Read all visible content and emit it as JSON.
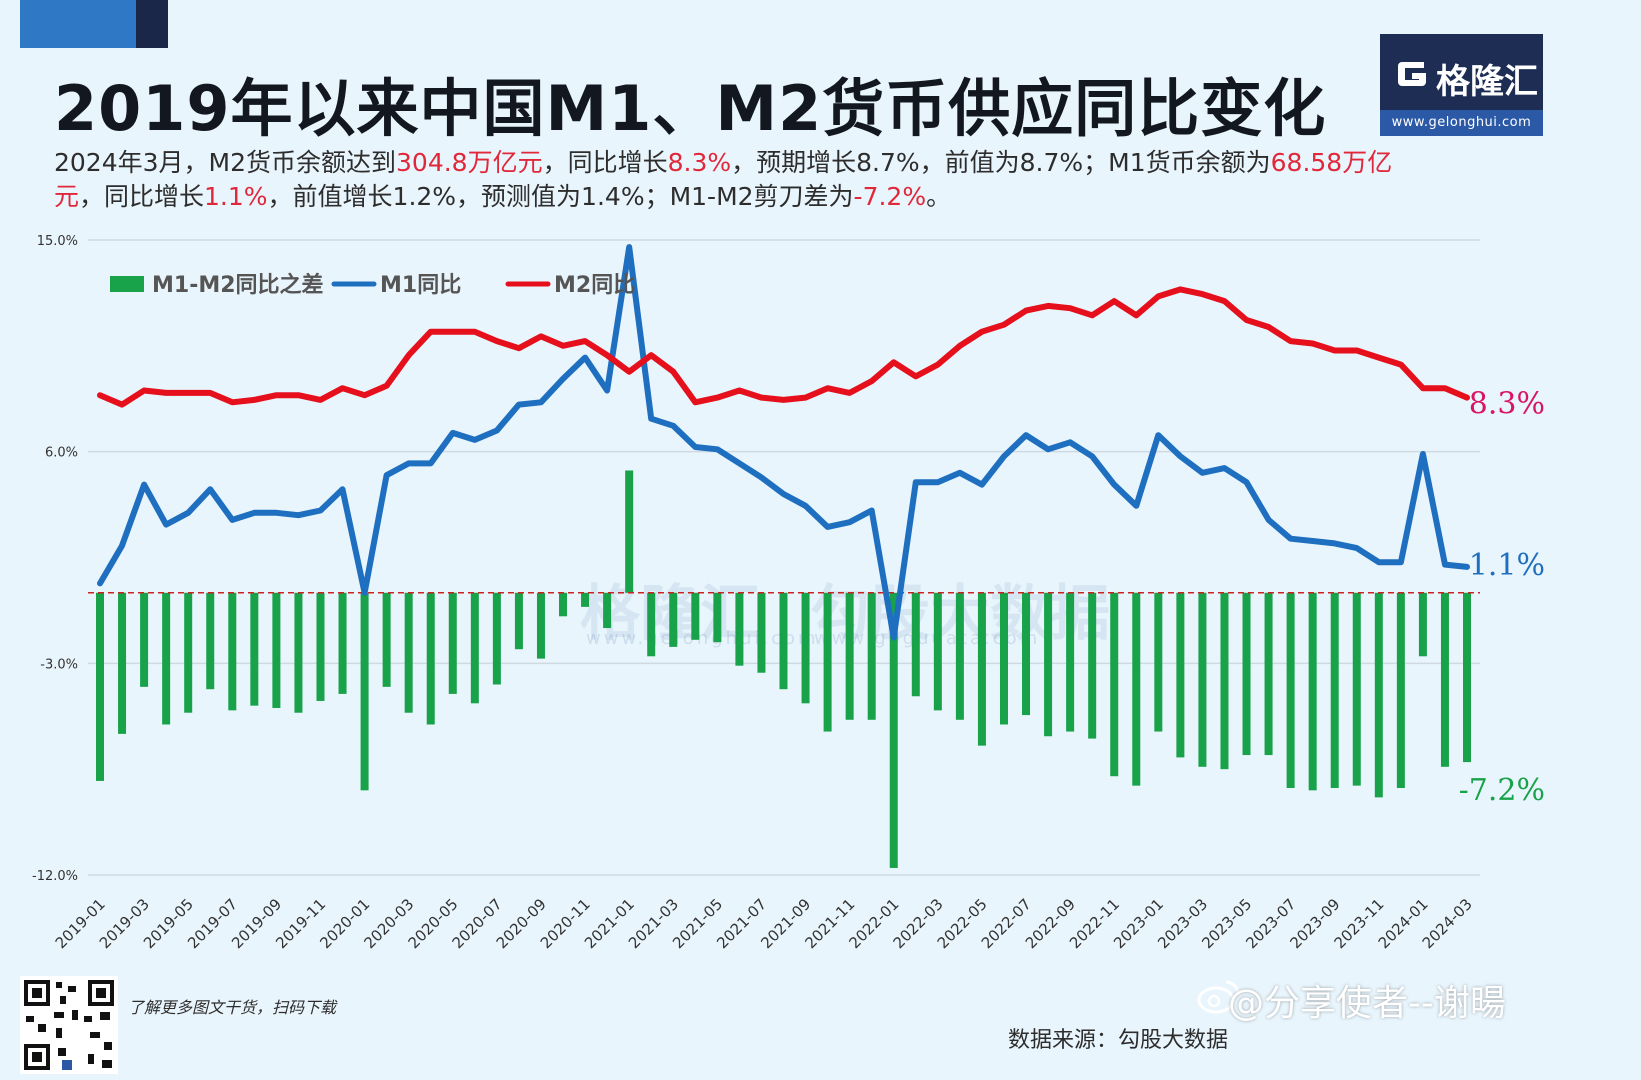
{
  "colors": {
    "m1": "#1f6fc0",
    "m2": "#e5101c",
    "spread": "#18a24a",
    "label_m1": "#1f6fc0",
    "label_m2": "#d91465",
    "label_spread": "#18a24a",
    "highlight_red": "#e0283a",
    "zero_line": "#cc2222",
    "grid": "#cfd9e2"
  },
  "header": {
    "title": "2019年以来中国M1、M2货币供应同比变化",
    "subtitle_parts": [
      {
        "text": "2024年3月，M2货币余额达到",
        "hl": false
      },
      {
        "text": "304.8万亿元",
        "hl": true
      },
      {
        "text": "，同比增长",
        "hl": false
      },
      {
        "text": "8.3%",
        "hl": true
      },
      {
        "text": "，预期增长8.7%，前值为8.7%；M1货币余额为",
        "hl": false
      },
      {
        "text": "68.58万亿元",
        "hl": true
      },
      {
        "text": "，同比增长",
        "hl": false
      },
      {
        "text": "1.1%",
        "hl": true
      },
      {
        "text": "，前值增长1.2%，预测值为1.4%；M1-M2剪刀差为",
        "hl": false
      },
      {
        "text": "-7.2%",
        "hl": true
      },
      {
        "text": "。",
        "hl": false
      }
    ]
  },
  "brand": {
    "logo_text": "格隆汇",
    "logo_url": "www.gelonghui.com",
    "watermark_1": "格隆汇",
    "watermark_1_sub": "www.gelonghui.com",
    "watermark_2": "勾股大数据",
    "watermark_2_sub": "www.gogudata.com"
  },
  "footer": {
    "note": "了解更多图文干货，扫码下载",
    "weibo_handle": "@分享使者--谢暘",
    "source": "数据来源：勾股大数据"
  },
  "chart_data": {
    "type": "bar",
    "title": "",
    "xlabel": "",
    "ylabel": "",
    "ylim": [
      -12,
      15
    ],
    "yticks": [
      15,
      6,
      -3,
      -12
    ],
    "ytick_labels": [
      "15.0%",
      "6.0%",
      "-3.0%",
      "-12.0%"
    ],
    "grid": true,
    "legend_position": "top-left",
    "zero_line": "dashed",
    "x_tick_labels": [
      "2019-01",
      "2019-03",
      "2019-05",
      "2019-07",
      "2019-09",
      "2019-11",
      "2020-01",
      "2020-03",
      "2020-05",
      "2020-07",
      "2020-09",
      "2020-11",
      "2021-01",
      "2021-03",
      "2021-05",
      "2021-07",
      "2021-09",
      "2021-11",
      "2022-01",
      "2022-03",
      "2022-05",
      "2022-07",
      "2022-09",
      "2022-11",
      "2023-01",
      "2023-03",
      "2023-05",
      "2023-07",
      "2023-09",
      "2023-11",
      "2024-01",
      "2024-03"
    ],
    "x": [
      "2019-01",
      "2019-02",
      "2019-03",
      "2019-04",
      "2019-05",
      "2019-06",
      "2019-07",
      "2019-08",
      "2019-09",
      "2019-10",
      "2019-11",
      "2019-12",
      "2020-01",
      "2020-02",
      "2020-03",
      "2020-04",
      "2020-05",
      "2020-06",
      "2020-07",
      "2020-08",
      "2020-09",
      "2020-10",
      "2020-11",
      "2020-12",
      "2021-01",
      "2021-02",
      "2021-03",
      "2021-04",
      "2021-05",
      "2021-06",
      "2021-07",
      "2021-08",
      "2021-09",
      "2021-10",
      "2021-11",
      "2021-12",
      "2022-01",
      "2022-02",
      "2022-03",
      "2022-04",
      "2022-05",
      "2022-06",
      "2022-07",
      "2022-08",
      "2022-09",
      "2022-10",
      "2022-11",
      "2022-12",
      "2023-01",
      "2023-02",
      "2023-03",
      "2023-04",
      "2023-05",
      "2023-06",
      "2023-07",
      "2023-08",
      "2023-09",
      "2023-10",
      "2023-11",
      "2023-12",
      "2024-01",
      "2024-02",
      "2024-03"
    ],
    "series": [
      {
        "name": "M1-M2同比之差",
        "type": "bar",
        "values": [
          -8.0,
          -6.0,
          -4.0,
          -5.6,
          -5.1,
          -4.1,
          -5.0,
          -4.8,
          -4.9,
          -5.1,
          -4.6,
          -4.3,
          -8.4,
          -4.0,
          -5.1,
          -5.6,
          -4.3,
          -4.7,
          -3.9,
          -2.4,
          -2.8,
          -1.0,
          -0.6,
          -1.5,
          5.2,
          -2.7,
          -2.3,
          -2.0,
          -2.1,
          -3.1,
          -3.4,
          -4.1,
          -4.7,
          -5.9,
          -5.4,
          -5.4,
          -11.7,
          -4.4,
          -5.0,
          -5.4,
          -6.5,
          -5.6,
          -5.2,
          -6.1,
          -5.9,
          -6.2,
          -7.8,
          -8.2,
          -5.9,
          -7.0,
          -7.4,
          -7.5,
          -6.9,
          -6.9,
          -8.3,
          -8.4,
          -8.3,
          -8.2,
          -8.7,
          -8.3,
          -2.7,
          -7.4,
          -7.2
        ]
      },
      {
        "name": "M1同比",
        "type": "line",
        "values": [
          0.4,
          2.0,
          4.6,
          2.9,
          3.4,
          4.4,
          3.1,
          3.4,
          3.4,
          3.3,
          3.5,
          4.4,
          0.0,
          5.0,
          5.5,
          5.5,
          6.8,
          6.5,
          6.9,
          8.0,
          8.1,
          9.1,
          10.0,
          8.6,
          14.7,
          7.4,
          7.1,
          6.2,
          6.1,
          5.5,
          4.9,
          4.2,
          3.7,
          2.8,
          3.0,
          3.5,
          -1.9,
          4.7,
          4.7,
          5.1,
          4.6,
          5.8,
          6.7,
          6.1,
          6.4,
          5.8,
          4.6,
          3.7,
          6.7,
          5.8,
          5.1,
          5.3,
          4.7,
          3.1,
          2.3,
          2.2,
          2.1,
          1.9,
          1.3,
          1.3,
          5.9,
          1.2,
          1.1
        ]
      },
      {
        "name": "M2同比",
        "type": "line",
        "values": [
          8.4,
          8.0,
          8.6,
          8.5,
          8.5,
          8.5,
          8.1,
          8.2,
          8.4,
          8.4,
          8.2,
          8.7,
          8.4,
          8.8,
          10.1,
          11.1,
          11.1,
          11.1,
          10.7,
          10.4,
          10.9,
          10.5,
          10.7,
          10.1,
          9.4,
          10.1,
          9.4,
          8.1,
          8.3,
          8.6,
          8.3,
          8.2,
          8.3,
          8.7,
          8.5,
          9.0,
          9.8,
          9.2,
          9.7,
          10.5,
          11.1,
          11.4,
          12.0,
          12.2,
          12.1,
          11.8,
          12.4,
          11.8,
          12.6,
          12.9,
          12.7,
          12.4,
          11.6,
          11.3,
          10.7,
          10.6,
          10.3,
          10.3,
          10.0,
          9.7,
          8.7,
          8.7,
          8.3
        ]
      }
    ],
    "end_labels": {
      "m2": "8.3%",
      "m1": "1.1%",
      "spread": "-7.2%"
    }
  }
}
